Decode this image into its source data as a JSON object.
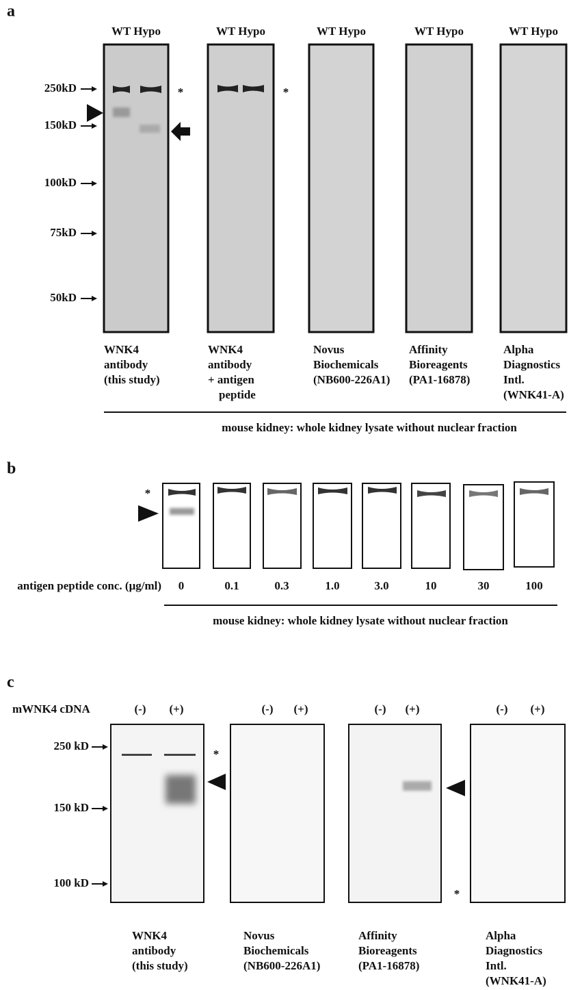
{
  "panel_a": {
    "label": "a",
    "lane_headers": [
      "WT Hypo",
      "WT Hypo",
      "WT Hypo",
      "WT Hypo",
      "WT Hypo"
    ],
    "markers": [
      "250kD",
      "150kD",
      "100kD",
      "75kD",
      "50kD"
    ],
    "asterisks": [
      "*",
      "*"
    ],
    "captions": [
      [
        "WNK4",
        "antibody",
        "(this study)"
      ],
      [
        "WNK4",
        "antibody",
        "+ antigen",
        "peptide"
      ],
      [
        "Novus",
        "Biochemicals",
        "(NB600-226A1)"
      ],
      [
        "Affinity",
        "Bioreagents",
        "(PA1-16878)"
      ],
      [
        "Alpha",
        "Diagnostics",
        "Intl.",
        "(WNK41-A)"
      ]
    ],
    "footer": "mouse kidney: whole kidney lysate without nuclear fraction"
  },
  "panel_b": {
    "label": "b",
    "asterisk": "*",
    "row_label": "antigen peptide conc. (μg/ml)",
    "concentrations": [
      "0",
      "0.1",
      "0.3",
      "1.0",
      "3.0",
      "10",
      "30",
      "100"
    ],
    "footer": "mouse kidney: whole kidney lysate without nuclear fraction"
  },
  "panel_c": {
    "label": "c",
    "row_label": "mWNK4 cDNA",
    "lanes": [
      "(-)",
      "(+)",
      "(-)",
      "(+)",
      "(-)",
      "(+)",
      "(-)",
      "(+)"
    ],
    "markers": [
      "250 kD",
      "150 kD",
      "100 kD"
    ],
    "asterisks": [
      "*",
      "*"
    ],
    "captions": [
      [
        "WNK4",
        "antibody",
        "(this study)"
      ],
      [
        "Novus",
        "Biochemicals",
        "(NB600-226A1)"
      ],
      [
        "Affinity",
        "Bioreagents",
        "(PA1-16878)"
      ],
      [
        "Alpha",
        "Diagnostics",
        "Intl.",
        "(WNK41-A)"
      ]
    ]
  }
}
